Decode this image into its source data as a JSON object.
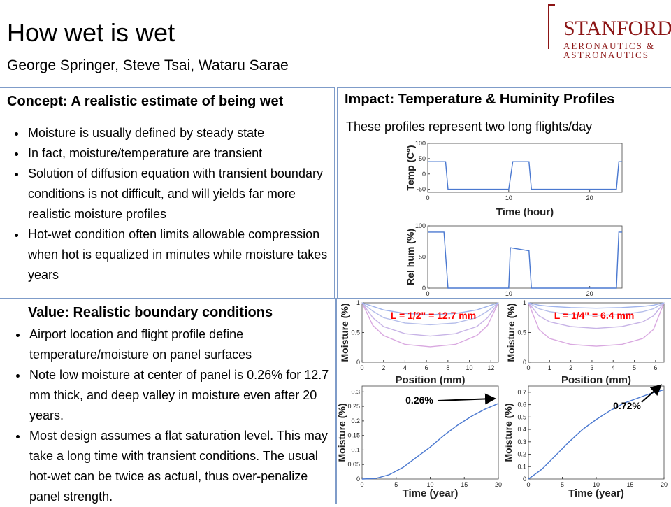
{
  "header": {
    "title": "How wet is wet",
    "authors": "George Springer, Steve Tsai, Wataru Sarae",
    "logo": [
      "STANFORD",
      "AERONAUTICS &",
      "ASTRONAUTICS"
    ]
  },
  "concept": {
    "heading": "Concept: A realistic estimate of being wet",
    "bullets": [
      "Moisture is usually defined by steady state",
      "In fact, moisture/temperature are transient",
      "Solution of diffusion equation with transient boundary conditions is not difficult, and will yields far more realistic moisture profiles",
      "Hot-wet condition often limits allowable compression when hot is equalized in minutes while moisture takes years"
    ]
  },
  "impact": {
    "heading": "Impact: Temperature & Huminity Profiles",
    "caption": "These profiles represent two long flights/day"
  },
  "value": {
    "heading": "Value: Realistic boundary conditions",
    "bullets": [
      "Airport location and flight profile define temperature/moisture on panel surfaces",
      "Note low moisture at center of panel is 0.26% for 12.7 mm thick, and deep valley in moisture even after 20 years.",
      "Most design assumes a flat saturation level. This may take a long time with transient conditions.  The usual hot-wet can be twice as actual, thus over-penalize panel strength."
    ]
  },
  "charts": [
    {
      "type": "line",
      "ylabel": "Temp (C°)",
      "xlabel": "Time (hour)",
      "xlim": [
        0,
        24
      ],
      "ylim": [
        -60,
        100
      ],
      "xticks": [
        0,
        10,
        20
      ],
      "yticks": [
        -50,
        0,
        50,
        100
      ],
      "x": [
        0,
        2.2,
        2.5,
        10,
        10.5,
        12.5,
        12.8,
        23.3,
        23.6,
        24
      ],
      "series": [
        {
          "color": "#4a78d0",
          "values": [
            40,
            40,
            -50,
            -50,
            40,
            40,
            -50,
            -50,
            40,
            40
          ]
        }
      ]
    },
    {
      "type": "line",
      "ylabel": "Rel hum (%)",
      "xlim": [
        0,
        24
      ],
      "ylim": [
        0,
        100
      ],
      "xticks": [
        0,
        10,
        20
      ],
      "yticks": [
        0,
        50,
        100
      ],
      "x": [
        0,
        2,
        2.5,
        10,
        10.2,
        12.5,
        12.8,
        23.3,
        23.6,
        24
      ],
      "series": [
        {
          "color": "#4a78d0",
          "values": [
            90,
            90,
            0,
            0,
            65,
            60,
            0,
            0,
            90,
            90
          ]
        }
      ]
    },
    {
      "type": "line",
      "ylabel": "Moisture (%)",
      "xlabel": "Position (mm)",
      "annotation": "L = 1/2\" = 12.7 mm",
      "xlim": [
        0,
        12.7
      ],
      "ylim": [
        0,
        1
      ],
      "xticks": [
        0,
        2,
        4,
        6,
        8,
        10,
        12
      ],
      "yticks": [
        0,
        0.5,
        1
      ],
      "x": [
        0,
        1,
        2,
        4,
        6.35,
        8.7,
        10.7,
        11.7,
        12.7
      ],
      "series": [
        {
          "color": "#d9a8e0",
          "values": [
            1,
            0.62,
            0.45,
            0.3,
            0.26,
            0.3,
            0.45,
            0.62,
            1
          ]
        },
        {
          "color": "#c7b3e6",
          "values": [
            1,
            0.75,
            0.6,
            0.48,
            0.44,
            0.48,
            0.6,
            0.75,
            1
          ]
        },
        {
          "color": "#b4bdea",
          "values": [
            1,
            0.86,
            0.75,
            0.66,
            0.63,
            0.66,
            0.75,
            0.86,
            1
          ]
        },
        {
          "color": "#9fb3ec",
          "values": [
            1,
            0.94,
            0.88,
            0.82,
            0.8,
            0.82,
            0.88,
            0.94,
            1
          ]
        }
      ]
    },
    {
      "type": "line",
      "ylabel": "Moisture (%)",
      "xlabel": "Position (mm)",
      "annotation": "L = 1/4\" = 6.4 mm",
      "xlim": [
        0,
        6.4
      ],
      "ylim": [
        0,
        1
      ],
      "xticks": [
        0,
        1,
        2,
        3,
        4,
        5,
        6
      ],
      "yticks": [
        0,
        0.5,
        1
      ],
      "x": [
        0,
        0.5,
        1,
        2,
        3.2,
        4.4,
        5.4,
        5.9,
        6.4
      ],
      "series": [
        {
          "color": "#d9a8e0",
          "values": [
            1,
            0.55,
            0.4,
            0.3,
            0.27,
            0.3,
            0.4,
            0.55,
            1
          ]
        },
        {
          "color": "#c7b3e6",
          "values": [
            1,
            0.78,
            0.68,
            0.6,
            0.57,
            0.6,
            0.68,
            0.78,
            1
          ]
        },
        {
          "color": "#b4bdea",
          "values": [
            1,
            0.9,
            0.85,
            0.8,
            0.79,
            0.8,
            0.85,
            0.9,
            1
          ]
        },
        {
          "color": "#9fb3ec",
          "values": [
            1,
            0.96,
            0.94,
            0.92,
            0.91,
            0.92,
            0.94,
            0.96,
            1
          ]
        }
      ]
    },
    {
      "type": "line",
      "ylabel": "Moisture (%)",
      "xlabel": "Time (year)",
      "annotation": "0.26%",
      "xlim": [
        0,
        20
      ],
      "ylim": [
        0,
        0.32
      ],
      "xticks": [
        0,
        5,
        10,
        15,
        20
      ],
      "yticks": [
        0,
        0.05,
        0.1,
        0.15,
        0.2,
        0.25,
        0.3
      ],
      "x": [
        0,
        2,
        4,
        6,
        8,
        10,
        12,
        14,
        16,
        18,
        20
      ],
      "series": [
        {
          "color": "#4a78d0",
          "values": [
            0,
            0.002,
            0.015,
            0.04,
            0.075,
            0.11,
            0.15,
            0.185,
            0.215,
            0.24,
            0.26
          ]
        }
      ]
    },
    {
      "type": "line",
      "ylabel": "Moisture (%)",
      "xlabel": "Time (year)",
      "annotation": "0.72%",
      "xlim": [
        0,
        20
      ],
      "ylim": [
        0,
        0.75
      ],
      "xticks": [
        0,
        5,
        10,
        15,
        20
      ],
      "yticks": [
        0,
        0.1,
        0.2,
        0.3,
        0.4,
        0.5,
        0.6,
        0.7
      ],
      "x": [
        0,
        2,
        4,
        6,
        8,
        10,
        12,
        14,
        16,
        18,
        20
      ],
      "series": [
        {
          "color": "#4a78d0",
          "values": [
            0,
            0.08,
            0.19,
            0.3,
            0.4,
            0.48,
            0.55,
            0.61,
            0.65,
            0.69,
            0.72
          ]
        }
      ]
    }
  ]
}
